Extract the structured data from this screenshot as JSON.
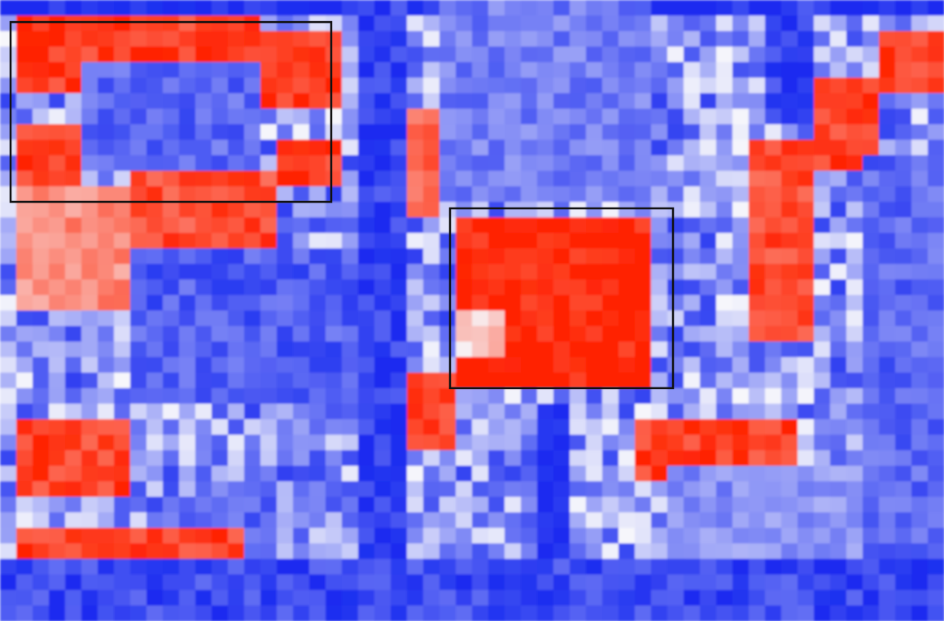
{
  "chart_data": {
    "type": "heatmap",
    "title": "",
    "xlabel": "",
    "ylabel": "",
    "colormap": {
      "low": "#1a2cf0",
      "mid": "#f7f7fb",
      "high": "#ff2200"
    },
    "value_range": [
      -1,
      1
    ],
    "grid": false,
    "legend": "none",
    "rows": 40,
    "cols": 58,
    "highlight_regions": [
      {
        "row_start": 1,
        "row_end": 13,
        "col_start": 0,
        "col_end": 20,
        "color": "#111111"
      },
      {
        "row_start": 13,
        "row_end": 25,
        "col_start": 27,
        "col_end": 41,
        "color": "#111111"
      }
    ],
    "regions": [
      {
        "r0": 0,
        "r1": 1,
        "c0": 0,
        "c1": 58,
        "v": -1.0
      },
      {
        "r0": 1,
        "r1": 6,
        "c0": 1,
        "c1": 5,
        "v": 0.9
      },
      {
        "r0": 1,
        "r1": 4,
        "c0": 5,
        "c1": 16,
        "v": 0.85
      },
      {
        "r0": 2,
        "r1": 7,
        "c0": 16,
        "c1": 21,
        "v": 0.9
      },
      {
        "r0": 4,
        "r1": 11,
        "c0": 5,
        "c1": 16,
        "v": -0.7
      },
      {
        "r0": 8,
        "r1": 12,
        "c0": 1,
        "c1": 5,
        "v": 0.9
      },
      {
        "r0": 9,
        "r1": 12,
        "c0": 17,
        "c1": 21,
        "v": 0.9
      },
      {
        "r0": 11,
        "r1": 16,
        "c0": 8,
        "c1": 17,
        "v": 0.8
      },
      {
        "r0": 12,
        "r1": 20,
        "c0": 1,
        "c1": 8,
        "v": 0.5
      },
      {
        "r0": 16,
        "r1": 26,
        "c0": 8,
        "c1": 22,
        "v": -0.75
      },
      {
        "r0": 27,
        "r1": 32,
        "c0": 1,
        "c1": 8,
        "v": 0.85
      },
      {
        "r0": 32,
        "r1": 38,
        "c0": 9,
        "c1": 17,
        "v": -0.7
      },
      {
        "r0": 34,
        "r1": 38,
        "c0": 1,
        "c1": 15,
        "v": 0.85
      },
      {
        "r0": 0,
        "r1": 40,
        "c0": 22,
        "c1": 25,
        "v": -0.9
      },
      {
        "r0": 7,
        "r1": 14,
        "c0": 25,
        "c1": 27,
        "v": 0.7
      },
      {
        "r0": 0,
        "r1": 13,
        "c0": 27,
        "c1": 40,
        "v": -0.6
      },
      {
        "r0": 14,
        "r1": 25,
        "c0": 28,
        "c1": 40,
        "v": 1.0
      },
      {
        "r0": 20,
        "r1": 23,
        "c0": 28,
        "c1": 31,
        "v": 0.2
      },
      {
        "r0": 24,
        "r1": 29,
        "c0": 25,
        "c1": 28,
        "v": 0.85
      },
      {
        "r0": 26,
        "r1": 40,
        "c0": 33,
        "c1": 35,
        "v": -1.0
      },
      {
        "r0": 27,
        "r1": 31,
        "c0": 39,
        "c1": 49,
        "v": 0.85
      },
      {
        "r0": 9,
        "r1": 22,
        "c0": 46,
        "c1": 50,
        "v": 0.8
      },
      {
        "r0": 5,
        "r1": 11,
        "c0": 50,
        "c1": 54,
        "v": 0.85
      },
      {
        "r0": 2,
        "r1": 6,
        "c0": 54,
        "c1": 58,
        "v": 0.85
      },
      {
        "r0": 0,
        "r1": 8,
        "c0": 47,
        "c1": 50,
        "v": -0.9
      },
      {
        "r0": 10,
        "r1": 40,
        "c0": 53,
        "c1": 58,
        "v": -0.7
      },
      {
        "r0": 30,
        "r1": 36,
        "c0": 41,
        "c1": 53,
        "v": -0.5
      },
      {
        "r0": 36,
        "r1": 40,
        "c0": 0,
        "c1": 58,
        "v": -0.85
      }
    ]
  }
}
